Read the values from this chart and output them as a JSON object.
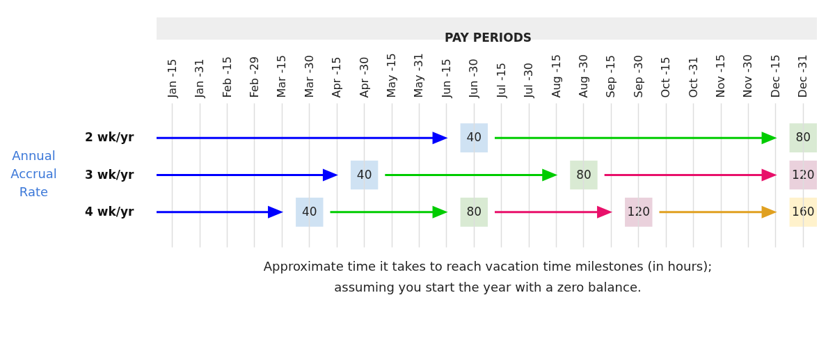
{
  "chart_data": {
    "type": "heatmap",
    "xlabel": "PAY PERIODS",
    "ylabel": "Annual Accrual Rate",
    "categories": [
      "Jan -15",
      "Jan -31",
      "Feb -15",
      "Feb -29",
      "Mar -15",
      "Mar -30",
      "Apr -15",
      "Apr -30",
      "May -15",
      "May -31",
      "Jun -15",
      "Jun -30",
      "Jul -15",
      "Jul -30",
      "Aug -15",
      "Aug -30",
      "Sep -15",
      "Sep -30",
      "Oct -15",
      "Oct -31",
      "Nov -15",
      "Nov -30",
      "Dec -15",
      "Dec -31"
    ],
    "y_categories": [
      "2 wk/yr",
      "3 wk/yr",
      "4 wk/yr"
    ],
    "cells": [
      [
        null,
        null,
        null,
        null,
        null,
        null,
        null,
        null,
        null,
        null,
        null,
        40,
        null,
        null,
        null,
        null,
        null,
        null,
        null,
        null,
        null,
        null,
        null,
        80
      ],
      [
        null,
        null,
        null,
        null,
        null,
        null,
        null,
        40,
        null,
        null,
        null,
        null,
        null,
        null,
        null,
        80,
        null,
        null,
        null,
        null,
        null,
        null,
        null,
        120
      ],
      [
        null,
        null,
        null,
        null,
        null,
        40,
        null,
        null,
        null,
        null,
        null,
        80,
        null,
        null,
        null,
        null,
        null,
        120,
        null,
        null,
        null,
        null,
        null,
        160
      ]
    ],
    "colors": [
      "#cfe2f3",
      "#d9ead3",
      "#ead1dc",
      "#fff2cc"
    ],
    "grid": "x",
    "data_labels": true,
    "annotations": [
      "Approximate time it takes to reach vacation time milestones (in hours);",
      "assuming you start the year with a zero balance."
    ]
  }
}
